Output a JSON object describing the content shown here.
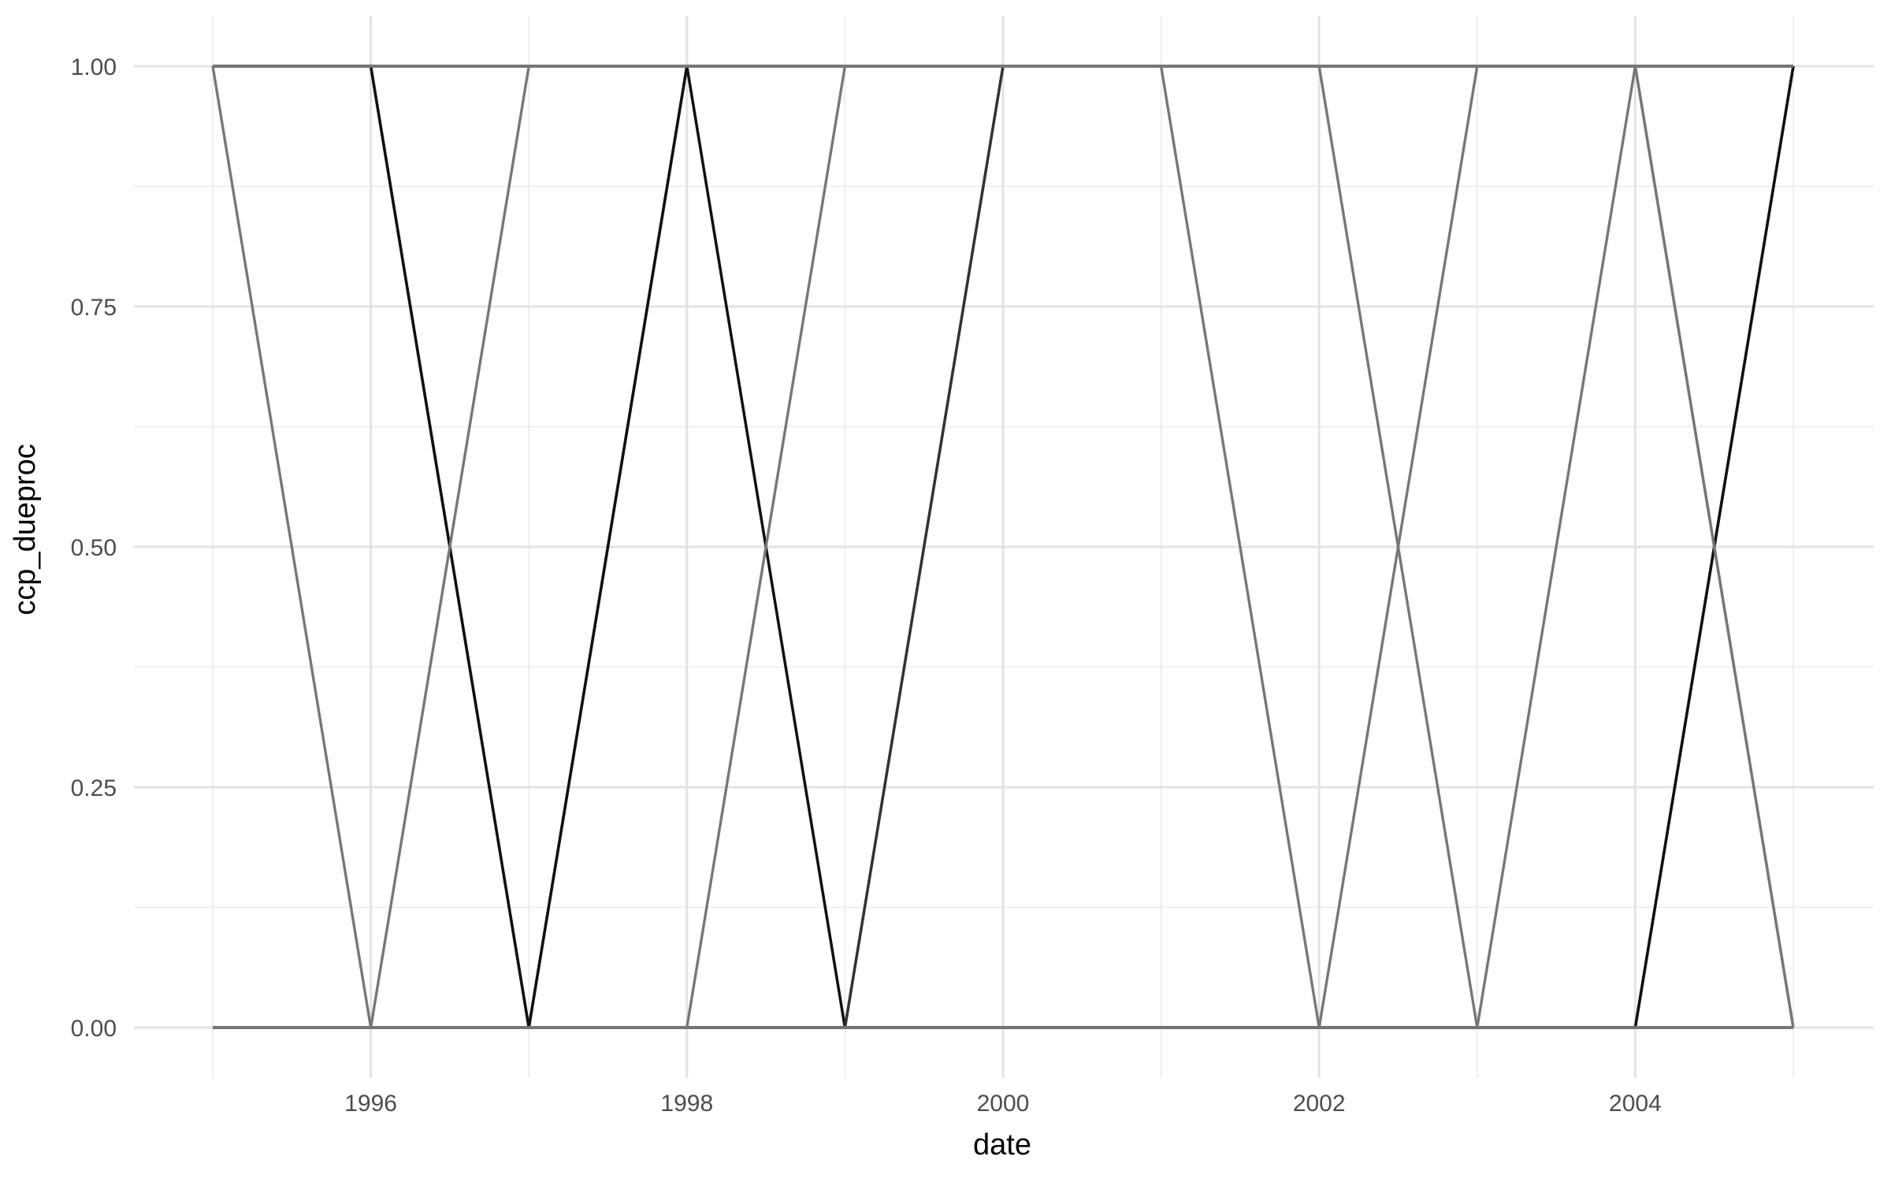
{
  "chart_data": {
    "type": "line",
    "xlabel": "date",
    "ylabel": "ccp_dueproc",
    "xlim": [
      1995,
      2005
    ],
    "ylim": [
      0,
      1
    ],
    "x_ticks": [
      1996,
      1998,
      2000,
      2002,
      2004
    ],
    "x_tick_labels": [
      "1996",
      "1998",
      "2000",
      "2002",
      "2004"
    ],
    "y_ticks": [
      0,
      0.25,
      0.5,
      0.75,
      1
    ],
    "y_tick_labels": [
      "0.00",
      "0.25",
      "0.50",
      "0.75",
      "1.00"
    ],
    "grid": true,
    "legend": "none",
    "series": [
      {
        "x": [
          1995,
          1996,
          1997,
          1998,
          1999,
          2000,
          2001,
          2002,
          2003,
          2004,
          2005
        ],
        "values": [
          1,
          1,
          0,
          1,
          0,
          1,
          1,
          1,
          1,
          1,
          1
        ],
        "color": "#333333"
      },
      {
        "x": [
          1995,
          1996,
          1997,
          1998,
          1999,
          2000,
          2001,
          2002,
          2003,
          2004,
          2005
        ],
        "values": [
          1,
          1,
          0,
          1,
          1,
          1,
          1,
          1,
          1,
          1,
          1
        ],
        "color": "#000000"
      },
      {
        "x": [
          1995,
          1996,
          1997,
          1998,
          1999,
          2000,
          2001,
          2002,
          2003,
          2004,
          2005
        ],
        "values": [
          1,
          1,
          1,
          1,
          1,
          1,
          1,
          1,
          1,
          1,
          1
        ],
        "color": "#000000"
      },
      {
        "x": [
          1995,
          1996,
          1997,
          1998,
          1999,
          2000,
          2001,
          2002,
          2003,
          2004,
          2005
        ],
        "values": [
          0,
          0,
          0,
          0,
          0,
          0,
          0,
          0,
          0,
          0,
          0
        ],
        "color": "#000000"
      },
      {
        "x": [
          1995,
          1996,
          1997,
          1998,
          1999,
          2000,
          2001,
          2002,
          2003,
          2004,
          2005
        ],
        "values": [
          0,
          0,
          0,
          1,
          0,
          0,
          0,
          0,
          0,
          0,
          1
        ],
        "color": "#111111"
      },
      {
        "x": [
          1995,
          1996,
          1997,
          1998,
          1999,
          2000,
          2001,
          2002,
          2003,
          2004,
          2005
        ],
        "values": [
          1,
          1,
          0,
          0,
          0,
          0,
          0,
          0,
          0,
          0,
          1
        ],
        "color": "#111111"
      },
      {
        "x": [
          1995,
          1996,
          1997,
          1998,
          1999,
          2000,
          2001,
          2002,
          2003,
          2004,
          2005
        ],
        "values": [
          0,
          0,
          0,
          0,
          0,
          1,
          1,
          1,
          1,
          1,
          1
        ],
        "color": "#333333"
      },
      {
        "x": [
          1995,
          1996,
          1997,
          1998,
          1999,
          2000,
          2001,
          2002,
          2003,
          2004,
          2005
        ],
        "values": [
          0,
          0,
          0,
          0,
          0,
          0,
          0,
          0,
          0,
          0,
          1
        ],
        "color": "#111111"
      },
      {
        "x": [
          1995,
          1996,
          1997,
          1998,
          1999,
          2000,
          2001,
          2002,
          2003,
          2004,
          2005
        ],
        "values": [
          1,
          1,
          1,
          1,
          1,
          1,
          1,
          1,
          1,
          1,
          0
        ],
        "color": "#777777"
      },
      {
        "x": [
          1995,
          1996,
          1997,
          1998,
          1999,
          2000,
          2001,
          2002,
          2003,
          2004,
          2005
        ],
        "values": [
          1,
          0,
          1,
          1,
          1,
          1,
          1,
          1,
          1,
          1,
          1
        ],
        "color": "#777777"
      },
      {
        "x": [
          1995,
          1996,
          1997,
          1998,
          1999,
          2000,
          2001,
          2002,
          2003,
          2004,
          2005
        ],
        "values": [
          0,
          0,
          0,
          0,
          1,
          1,
          1,
          1,
          1,
          1,
          1
        ],
        "color": "#777777"
      },
      {
        "x": [
          1995,
          1996,
          1997,
          1998,
          1999,
          2000,
          2001,
          2002,
          2003,
          2004,
          2005
        ],
        "values": [
          0,
          0,
          0,
          0,
          0,
          0,
          0,
          0,
          1,
          1,
          1
        ],
        "color": "#777777"
      },
      {
        "x": [
          1995,
          1996,
          1997,
          1998,
          1999,
          2000,
          2001,
          2002,
          2003,
          2004,
          2005
        ],
        "values": [
          1,
          1,
          1,
          1,
          1,
          1,
          1,
          0,
          0,
          0,
          0
        ],
        "color": "#777777"
      },
      {
        "x": [
          1995,
          1996,
          1997,
          1998,
          1999,
          2000,
          2001,
          2002,
          2003,
          2004,
          2005
        ],
        "values": [
          1,
          1,
          1,
          1,
          1,
          1,
          1,
          1,
          0,
          1,
          0
        ],
        "color": "#777777"
      },
      {
        "x": [
          1995,
          1996,
          1997,
          1998,
          1999,
          2000,
          2001,
          2002,
          2003,
          2004,
          2005
        ],
        "values": [
          0,
          0,
          0,
          0,
          0,
          0,
          0,
          0,
          0,
          0,
          0
        ],
        "color": "#777777"
      }
    ]
  }
}
